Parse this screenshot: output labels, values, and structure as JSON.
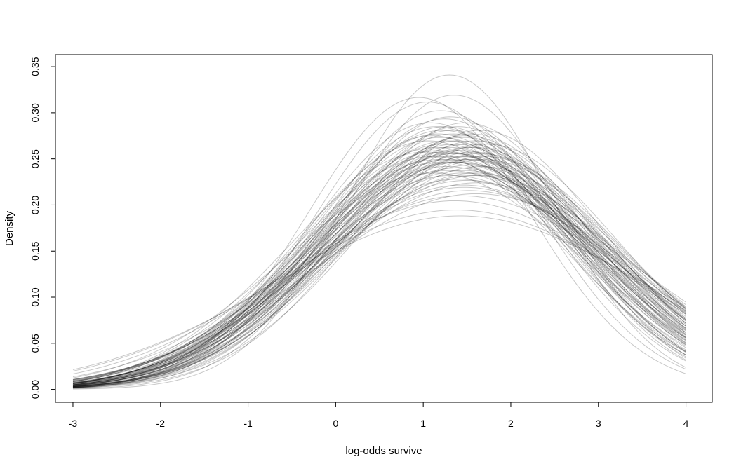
{
  "chart_data": {
    "type": "line",
    "title": "",
    "xlabel": "log-odds survive",
    "ylabel": "Density",
    "xlim": [
      -3.2,
      4.3
    ],
    "ylim": [
      -0.014,
      0.363
    ],
    "x_ticks": [
      -3,
      -2,
      -1,
      0,
      1,
      2,
      3,
      4
    ],
    "x_tick_labels": [
      "-3",
      "-2",
      "-1",
      "0",
      "1",
      "2",
      "3",
      "4"
    ],
    "y_ticks": [
      0.0,
      0.05,
      0.1,
      0.15,
      0.2,
      0.25,
      0.3,
      0.35
    ],
    "y_tick_labels": [
      "0.00",
      "0.05",
      "0.10",
      "0.15",
      "0.20",
      "0.25",
      "0.30",
      "0.35"
    ],
    "curve_domain": [
      -3,
      4
    ],
    "curve_family": "normal density",
    "series": [
      {
        "mean": 1.3,
        "sd": 1.17
      },
      {
        "mean": 1.35,
        "sd": 1.25
      },
      {
        "mean": 1.4,
        "sd": 1.4
      },
      {
        "mean": 1.25,
        "sd": 1.55
      },
      {
        "mean": 1.45,
        "sd": 1.8
      },
      {
        "mean": 1.38,
        "sd": 2.05
      },
      {
        "mean": 1.42,
        "sd": 2.12
      },
      {
        "mean": 1.2,
        "sd": 1.32
      },
      {
        "mean": 1.55,
        "sd": 1.6
      },
      {
        "mean": 1.5,
        "sd": 1.5
      },
      {
        "mean": 1.1,
        "sd": 1.45
      },
      {
        "mean": 1.6,
        "sd": 1.7
      },
      {
        "mean": 1.48,
        "sd": 1.38
      },
      {
        "mean": 1.33,
        "sd": 1.62
      },
      {
        "mean": 1.28,
        "sd": 1.48
      },
      {
        "mean": 1.52,
        "sd": 1.85
      },
      {
        "mean": 1.05,
        "sd": 1.28
      },
      {
        "mean": 0.95,
        "sd": 1.26
      },
      {
        "mean": 1.4,
        "sd": 1.75
      },
      {
        "mean": 1.65,
        "sd": 1.42
      },
      {
        "mean": 1.7,
        "sd": 1.58
      },
      {
        "mean": 1.18,
        "sd": 1.6
      },
      {
        "mean": 1.36,
        "sd": 1.95
      },
      {
        "mean": 1.46,
        "sd": 1.68
      },
      {
        "mean": 1.22,
        "sd": 1.42
      },
      {
        "mean": 1.58,
        "sd": 1.52
      },
      {
        "mean": 1.31,
        "sd": 1.35
      },
      {
        "mean": 1.44,
        "sd": 1.9
      },
      {
        "mean": 1.15,
        "sd": 1.52
      },
      {
        "mean": 1.62,
        "sd": 1.78
      },
      {
        "mean": 1.27,
        "sd": 1.65
      },
      {
        "mean": 1.49,
        "sd": 1.45
      },
      {
        "mean": 1.37,
        "sd": 1.56
      },
      {
        "mean": 1.08,
        "sd": 1.38
      },
      {
        "mean": 1.56,
        "sd": 1.72
      },
      {
        "mean": 1.34,
        "sd": 1.44
      },
      {
        "mean": 1.41,
        "sd": 1.62
      },
      {
        "mean": 1.24,
        "sd": 1.36
      },
      {
        "mean": 1.53,
        "sd": 1.58
      },
      {
        "mean": 1.12,
        "sd": 1.7
      },
      {
        "mean": 1.66,
        "sd": 1.65
      },
      {
        "mean": 1.29,
        "sd": 1.52
      },
      {
        "mean": 1.47,
        "sd": 1.82
      },
      {
        "mean": 1.02,
        "sd": 1.55
      },
      {
        "mean": 1.72,
        "sd": 1.5
      },
      {
        "mean": 1.39,
        "sd": 1.48
      },
      {
        "mean": 1.19,
        "sd": 1.46
      },
      {
        "mean": 1.61,
        "sd": 1.88
      },
      {
        "mean": 1.32,
        "sd": 1.72
      },
      {
        "mean": 1.43,
        "sd": 1.54
      },
      {
        "mean": 1.26,
        "sd": 1.58
      },
      {
        "mean": 1.54,
        "sd": 1.64
      },
      {
        "mean": 1.14,
        "sd": 1.4
      },
      {
        "mean": 1.68,
        "sd": 1.6
      },
      {
        "mean": 1.36,
        "sd": 1.5
      },
      {
        "mean": 1.5,
        "sd": 1.76
      },
      {
        "mean": 1.21,
        "sd": 1.62
      },
      {
        "mean": 1.45,
        "sd": 1.46
      },
      {
        "mean": 1.3,
        "sd": 1.6
      },
      {
        "mean": 1.57,
        "sd": 1.55
      },
      {
        "mean": 1.1,
        "sd": 1.58
      },
      {
        "mean": 1.4,
        "sd": 1.66
      },
      {
        "mean": 1.33,
        "sd": 1.42
      },
      {
        "mean": 1.63,
        "sd": 1.72
      },
      {
        "mean": 1.23,
        "sd": 1.5
      },
      {
        "mean": 1.48,
        "sd": 1.6
      },
      {
        "mean": 1.35,
        "sd": 1.54
      },
      {
        "mean": 1.17,
        "sd": 1.44
      },
      {
        "mean": 1.59,
        "sd": 1.48
      },
      {
        "mean": 1.42,
        "sd": 1.58
      },
      {
        "mean": 1.28,
        "sd": 1.68
      },
      {
        "mean": 1.51,
        "sd": 1.52
      },
      {
        "mean": 1.06,
        "sd": 1.48
      },
      {
        "mean": 1.64,
        "sd": 1.56
      },
      {
        "mean": 1.37,
        "sd": 1.62
      },
      {
        "mean": 1.25,
        "sd": 1.4
      },
      {
        "mean": 1.46,
        "sd": 1.7
      },
      {
        "mean": 1.32,
        "sd": 1.56
      },
      {
        "mean": 1.55,
        "sd": 1.44
      },
      {
        "mean": 1.19,
        "sd": 1.54
      }
    ]
  }
}
